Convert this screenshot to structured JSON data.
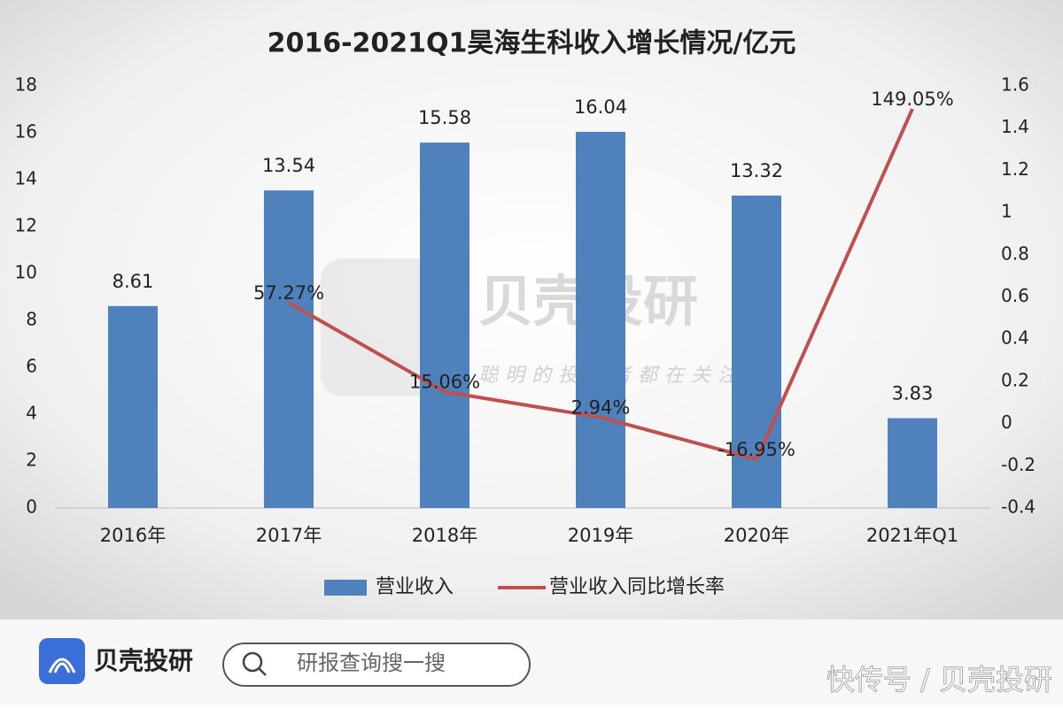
{
  "chart_data": {
    "type": "bar",
    "title": "2016-2021Q1昊海生科收入增长情况/亿元",
    "categories": [
      "2016年",
      "2017年",
      "2018年",
      "2019年",
      "2020年",
      "2021年Q1"
    ],
    "series": [
      {
        "name": "营业收入",
        "type": "bar",
        "color": "#4f81bd",
        "values": [
          8.61,
          13.54,
          15.58,
          16.04,
          13.32,
          3.83
        ]
      },
      {
        "name": "营业收入同比增长率",
        "type": "line",
        "axis": "y2",
        "color": "#c0504d",
        "values": [
          null,
          0.5727,
          0.1506,
          0.0294,
          -0.1695,
          1.4905
        ],
        "value_labels": [
          null,
          "57.27%",
          "15.06%",
          "2.94%",
          "-16.95%",
          "149.05%"
        ]
      }
    ],
    "ylim": [
      0,
      18
    ],
    "yticks": [
      0,
      2,
      4,
      6,
      8,
      10,
      12,
      14,
      16,
      18
    ],
    "y2lim": [
      -0.4,
      1.6
    ],
    "y2ticks": [
      -0.4,
      -0.2,
      0,
      0.2,
      0.4,
      0.6,
      0.8,
      1,
      1.2,
      1.4,
      1.6
    ],
    "legend": "bottom",
    "grid": false
  },
  "watermark": {
    "brand": "贝壳投研",
    "slogan": "聪明的投资者都在关注"
  },
  "footer": {
    "brand": "贝壳投研",
    "search": "研报查询搜一搜",
    "source": "快传号 / 贝壳投研"
  }
}
